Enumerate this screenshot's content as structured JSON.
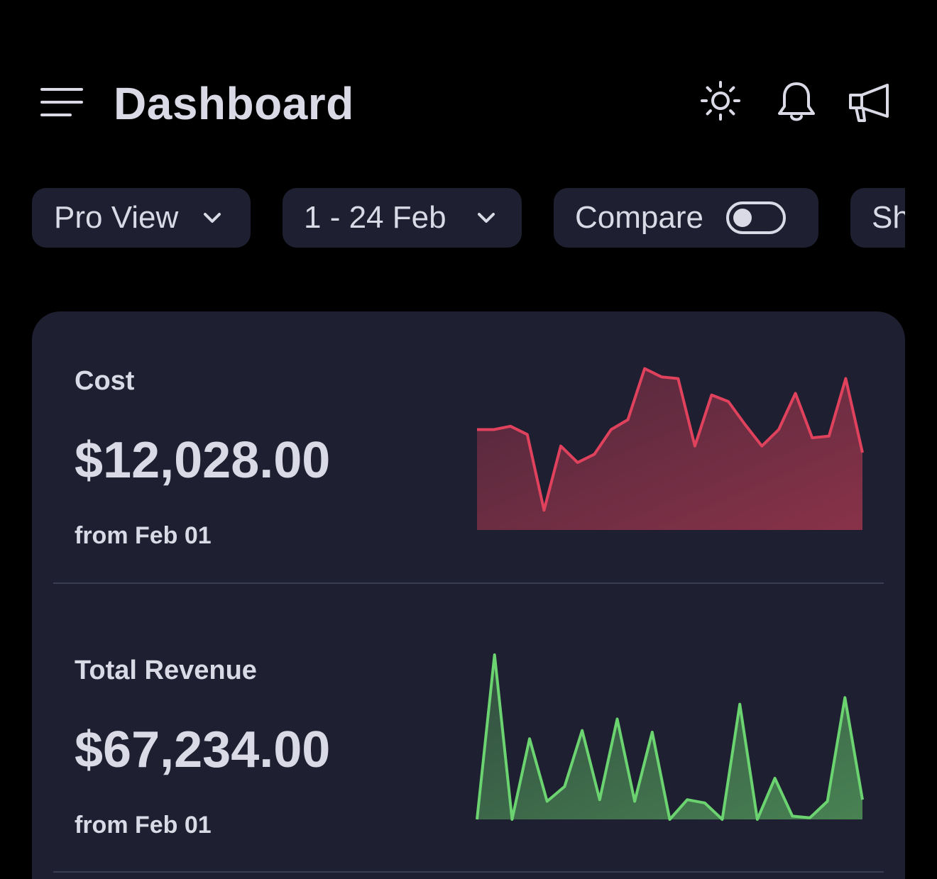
{
  "header": {
    "title": "Dashboard",
    "icons": [
      "menu-icon",
      "sun-icon",
      "bell-icon",
      "megaphone-icon"
    ]
  },
  "filters": {
    "view": "Pro View",
    "date_range": "1 - 24 Feb",
    "compare_label": "Compare",
    "compare_on": false,
    "next_chip_partial": "Sh"
  },
  "colors": {
    "background": "#000000",
    "surface": "#1E1F30",
    "chip": "#1E2031",
    "text": "#D9DAE6",
    "cost_line": "#E0425D",
    "revenue_line": "#6BD36F"
  },
  "stats": [
    {
      "label": "Cost",
      "value": "$12,028.00",
      "note": "from Feb 01"
    },
    {
      "label": "Total Revenue",
      "value": "$67,234.00",
      "note": "from Feb 01"
    }
  ],
  "chart_data": [
    {
      "type": "area",
      "name": "cost-sparkline",
      "color": "#E0425D",
      "values": [
        61,
        61,
        63,
        58,
        12,
        51,
        41,
        46,
        61,
        67,
        98,
        93,
        92,
        51,
        82,
        78,
        64,
        51,
        61,
        83,
        56,
        57,
        92,
        47
      ],
      "ylim": [
        0,
        100
      ]
    },
    {
      "type": "area",
      "name": "revenue-sparkline",
      "color": "#6BD36F",
      "values": [
        0,
        100,
        0,
        49,
        11,
        20,
        54,
        12,
        61,
        11,
        53,
        0,
        12,
        10,
        0,
        70,
        0,
        25,
        2,
        1,
        11,
        74,
        12
      ],
      "ylim": [
        0,
        100
      ]
    }
  ]
}
